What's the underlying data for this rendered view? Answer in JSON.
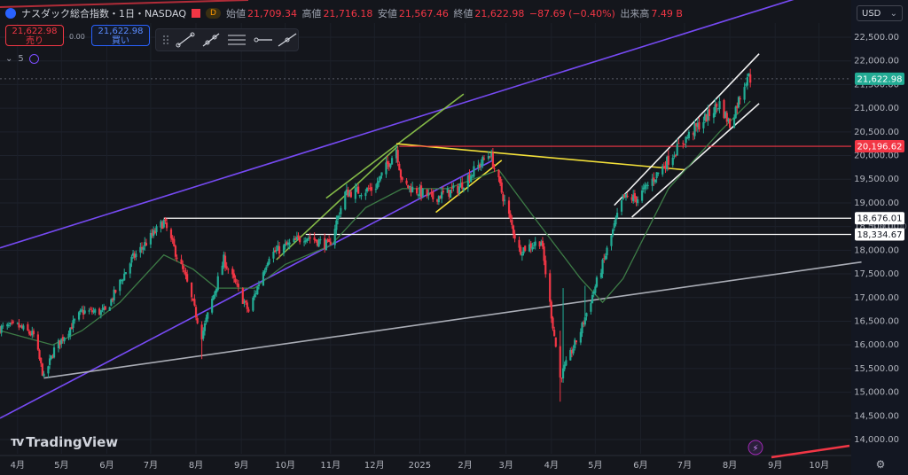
{
  "header": {
    "title": "ナスダック総合指数・1日・NASDAQ",
    "interval_badge": "D",
    "open_label": "始値",
    "open": "21,709.34",
    "high_label": "高値",
    "high": "21,716.18",
    "low_label": "安値",
    "low": "21,567.46",
    "close_label": "終値",
    "close": "21,622.98",
    "change": "−87.69 (−0.40%)",
    "volume_label": "出来高",
    "volume": "7.49 B"
  },
  "trade": {
    "sell_price": "21,622.98",
    "sell_label": "売り",
    "spread": "0.00",
    "buy_price": "21,622.98",
    "buy_label": "買い"
  },
  "toolbar_row": {
    "count": "5"
  },
  "currency": "USD",
  "brand": "TradingView",
  "icons": [
    "symbol-icon",
    "flag-icon",
    "chevron-icon",
    "indicator-icon",
    "drag-icon",
    "trendline-icon",
    "ray-icon",
    "parallel-channel-icon",
    "horizontal-ray-icon",
    "extended-line-icon",
    "settings-icon",
    "lightning-icon"
  ],
  "colors": {
    "up": "#22ab94",
    "down": "#f23645",
    "sma": "#3d7b46",
    "purple_channel": "#7c4dff",
    "green_channel": "#8bc34a",
    "yellow_channel": "#ffeb3b",
    "white_channel": "#ffffff",
    "gray_trend": "#b2b5be",
    "resistance_red": "#f23645",
    "support_white": "#ffffff",
    "price_badge": "#22ab94"
  },
  "chart_data": {
    "type": "candlestick",
    "ylim": [
      13700,
      22800
    ],
    "yticks": [
      14000,
      14500,
      15000,
      15500,
      16000,
      16500,
      17000,
      17500,
      18000,
      18500,
      19000,
      19500,
      20000,
      20500,
      21000,
      21500,
      22000,
      22500
    ],
    "ytick_labels": [
      "14,000.00",
      "14,500.00",
      "15,000.00",
      "15,500.00",
      "16,000.00",
      "16,500.00",
      "17,000.00",
      "17,500.00",
      "18,000.00",
      "18,500.00",
      "19,000.00",
      "19,500.00",
      "20,000.00",
      "20,500.00",
      "21,000.00",
      "21,500.00",
      "22,000.00",
      "22,500.00"
    ],
    "xticks": [
      {
        "label": "4月",
        "date": "2024-04-01"
      },
      {
        "label": "5月",
        "date": "2024-05-01"
      },
      {
        "label": "6月",
        "date": "2024-06-01"
      },
      {
        "label": "7月",
        "date": "2024-07-01"
      },
      {
        "label": "8月",
        "date": "2024-08-01"
      },
      {
        "label": "9月",
        "date": "2024-09-01"
      },
      {
        "label": "10月",
        "date": "2024-10-01"
      },
      {
        "label": "11月",
        "date": "2024-11-01"
      },
      {
        "label": "12月",
        "date": "2024-12-01"
      },
      {
        "label": "2025",
        "date": "2025-01-01"
      },
      {
        "label": "2月",
        "date": "2025-02-01"
      },
      {
        "label": "3月",
        "date": "2025-03-01"
      },
      {
        "label": "4月",
        "date": "2025-04-01"
      },
      {
        "label": "5月",
        "date": "2025-05-01"
      },
      {
        "label": "6月",
        "date": "2025-06-01"
      },
      {
        "label": "7月",
        "date": "2025-07-01"
      },
      {
        "label": "8月",
        "date": "2025-08-01"
      },
      {
        "label": "9月",
        "date": "2025-09-01"
      },
      {
        "label": "10月",
        "date": "2025-10-01"
      }
    ],
    "anchors": [
      [
        "2024-03-20",
        16350
      ],
      [
        "2024-04-01",
        16400
      ],
      [
        "2024-04-12",
        16200
      ],
      [
        "2024-04-19",
        15300
      ],
      [
        "2024-04-26",
        15900
      ],
      [
        "2024-05-15",
        16700
      ],
      [
        "2024-05-31",
        16700
      ],
      [
        "2024-06-18",
        17800
      ],
      [
        "2024-07-10",
        18600
      ],
      [
        "2024-07-25",
        17400
      ],
      [
        "2024-08-05",
        16200
      ],
      [
        "2024-08-20",
        17800
      ],
      [
        "2024-09-06",
        16700
      ],
      [
        "2024-09-20",
        17900
      ],
      [
        "2024-10-15",
        18300
      ],
      [
        "2024-10-31",
        18100
      ],
      [
        "2024-11-11",
        19200
      ],
      [
        "2024-12-01",
        19300
      ],
      [
        "2024-12-16",
        20150
      ],
      [
        "2024-12-20",
        19400
      ],
      [
        "2025-01-10",
        19100
      ],
      [
        "2025-01-27",
        19300
      ],
      [
        "2025-02-18",
        20050
      ],
      [
        "2025-03-10",
        18000
      ],
      [
        "2025-03-25",
        18200
      ],
      [
        "2025-04-07",
        15300
      ],
      [
        "2025-04-21",
        16300
      ],
      [
        "2025-05-06",
        17700
      ],
      [
        "2025-05-20",
        19100
      ],
      [
        "2025-05-30",
        19100
      ],
      [
        "2025-06-30",
        20300
      ],
      [
        "2025-07-25",
        21100
      ],
      [
        "2025-08-01",
        20650
      ],
      [
        "2025-08-13",
        21700
      ],
      [
        "2025-08-15",
        21622
      ]
    ],
    "spikes": [
      {
        "date": "2024-07-11",
        "low": 18550,
        "high": 18700
      },
      {
        "date": "2024-08-05",
        "low": 15700,
        "high": 16500
      },
      {
        "date": "2025-04-07",
        "low": 14800,
        "high": 16300
      },
      {
        "date": "2025-04-09",
        "low": 15200,
        "high": 17200
      },
      {
        "date": "2025-04-24",
        "low": 16400,
        "high": 17250
      }
    ],
    "sma": [
      [
        "2024-03-20",
        16300
      ],
      [
        "2024-04-25",
        16000
      ],
      [
        "2024-05-15",
        16300
      ],
      [
        "2024-06-10",
        16900
      ],
      [
        "2024-07-10",
        17900
      ],
      [
        "2024-07-30",
        17600
      ],
      [
        "2024-08-15",
        17200
      ],
      [
        "2024-09-10",
        17200
      ],
      [
        "2024-10-01",
        17700
      ],
      [
        "2024-11-01",
        18100
      ],
      [
        "2024-11-25",
        18900
      ],
      [
        "2024-12-20",
        19300
      ],
      [
        "2025-01-20",
        19300
      ],
      [
        "2025-02-24",
        19700
      ],
      [
        "2025-03-20",
        18700
      ],
      [
        "2025-04-21",
        17400
      ],
      [
        "2025-05-06",
        16900
      ],
      [
        "2025-05-20",
        17400
      ],
      [
        "2025-06-20",
        19300
      ],
      [
        "2025-07-25",
        20500
      ],
      [
        "2025-08-15",
        21150
      ]
    ],
    "last_price": 21622.98,
    "last_price_label": "21,622.98",
    "horizontal_levels": [
      {
        "name": "resistance-red",
        "value": 20196.62,
        "label": "20,196.62",
        "color": "#f23645",
        "start": "2024-12-18"
      },
      {
        "name": "support-upper",
        "value": 18676.01,
        "label": "18,676.01",
        "color": "#ffffff",
        "start": "2024-07-10"
      },
      {
        "name": "support-lower",
        "value": 18334.67,
        "label": "18,334.67",
        "color": "#ffffff",
        "start": "2024-10-15"
      }
    ],
    "hidden_label": "18,501.00",
    "trendlines": [
      {
        "name": "purple-upper",
        "color": "#7c4dff",
        "p1": [
          "2024-03-20",
          18050
        ],
        "p2": [
          "2025-10-25",
          23700
        ]
      },
      {
        "name": "purple-lower",
        "color": "#7c4dff",
        "p1": [
          "2024-03-20",
          14450
        ],
        "p2": [
          "2025-02-20",
          19900
        ]
      },
      {
        "name": "gray-support",
        "color": "#b2b5be",
        "p1": [
          "2024-04-19",
          15300
        ],
        "p2": [
          "2025-10-30",
          17750
        ]
      },
      {
        "name": "green-channel-lower",
        "color": "#8bc34a",
        "p1": [
          "2024-09-25",
          17800
        ],
        "p2": [
          "2024-12-17",
          20200
        ]
      },
      {
        "name": "green-channel-upper",
        "color": "#8bc34a",
        "p1": [
          "2024-10-29",
          19100
        ],
        "p2": [
          "2025-01-31",
          21300
        ]
      },
      {
        "name": "yellow-downtrend",
        "color": "#ffeb3b",
        "p1": [
          "2024-12-16",
          20250
        ],
        "p2": [
          "2025-07-01",
          19700
        ]
      },
      {
        "name": "yellow-lower",
        "color": "#ffeb3b",
        "p1": [
          "2025-01-12",
          18800
        ],
        "p2": [
          "2025-02-26",
          19900
        ]
      },
      {
        "name": "white-channel-upper",
        "color": "#ffffff",
        "p1": [
          "2025-05-14",
          18950
        ],
        "p2": [
          "2025-08-21",
          22150
        ]
      },
      {
        "name": "white-channel-lower",
        "color": "#ffffff",
        "p1": [
          "2025-05-26",
          18700
        ],
        "p2": [
          "2025-08-21",
          21100
        ]
      }
    ]
  }
}
